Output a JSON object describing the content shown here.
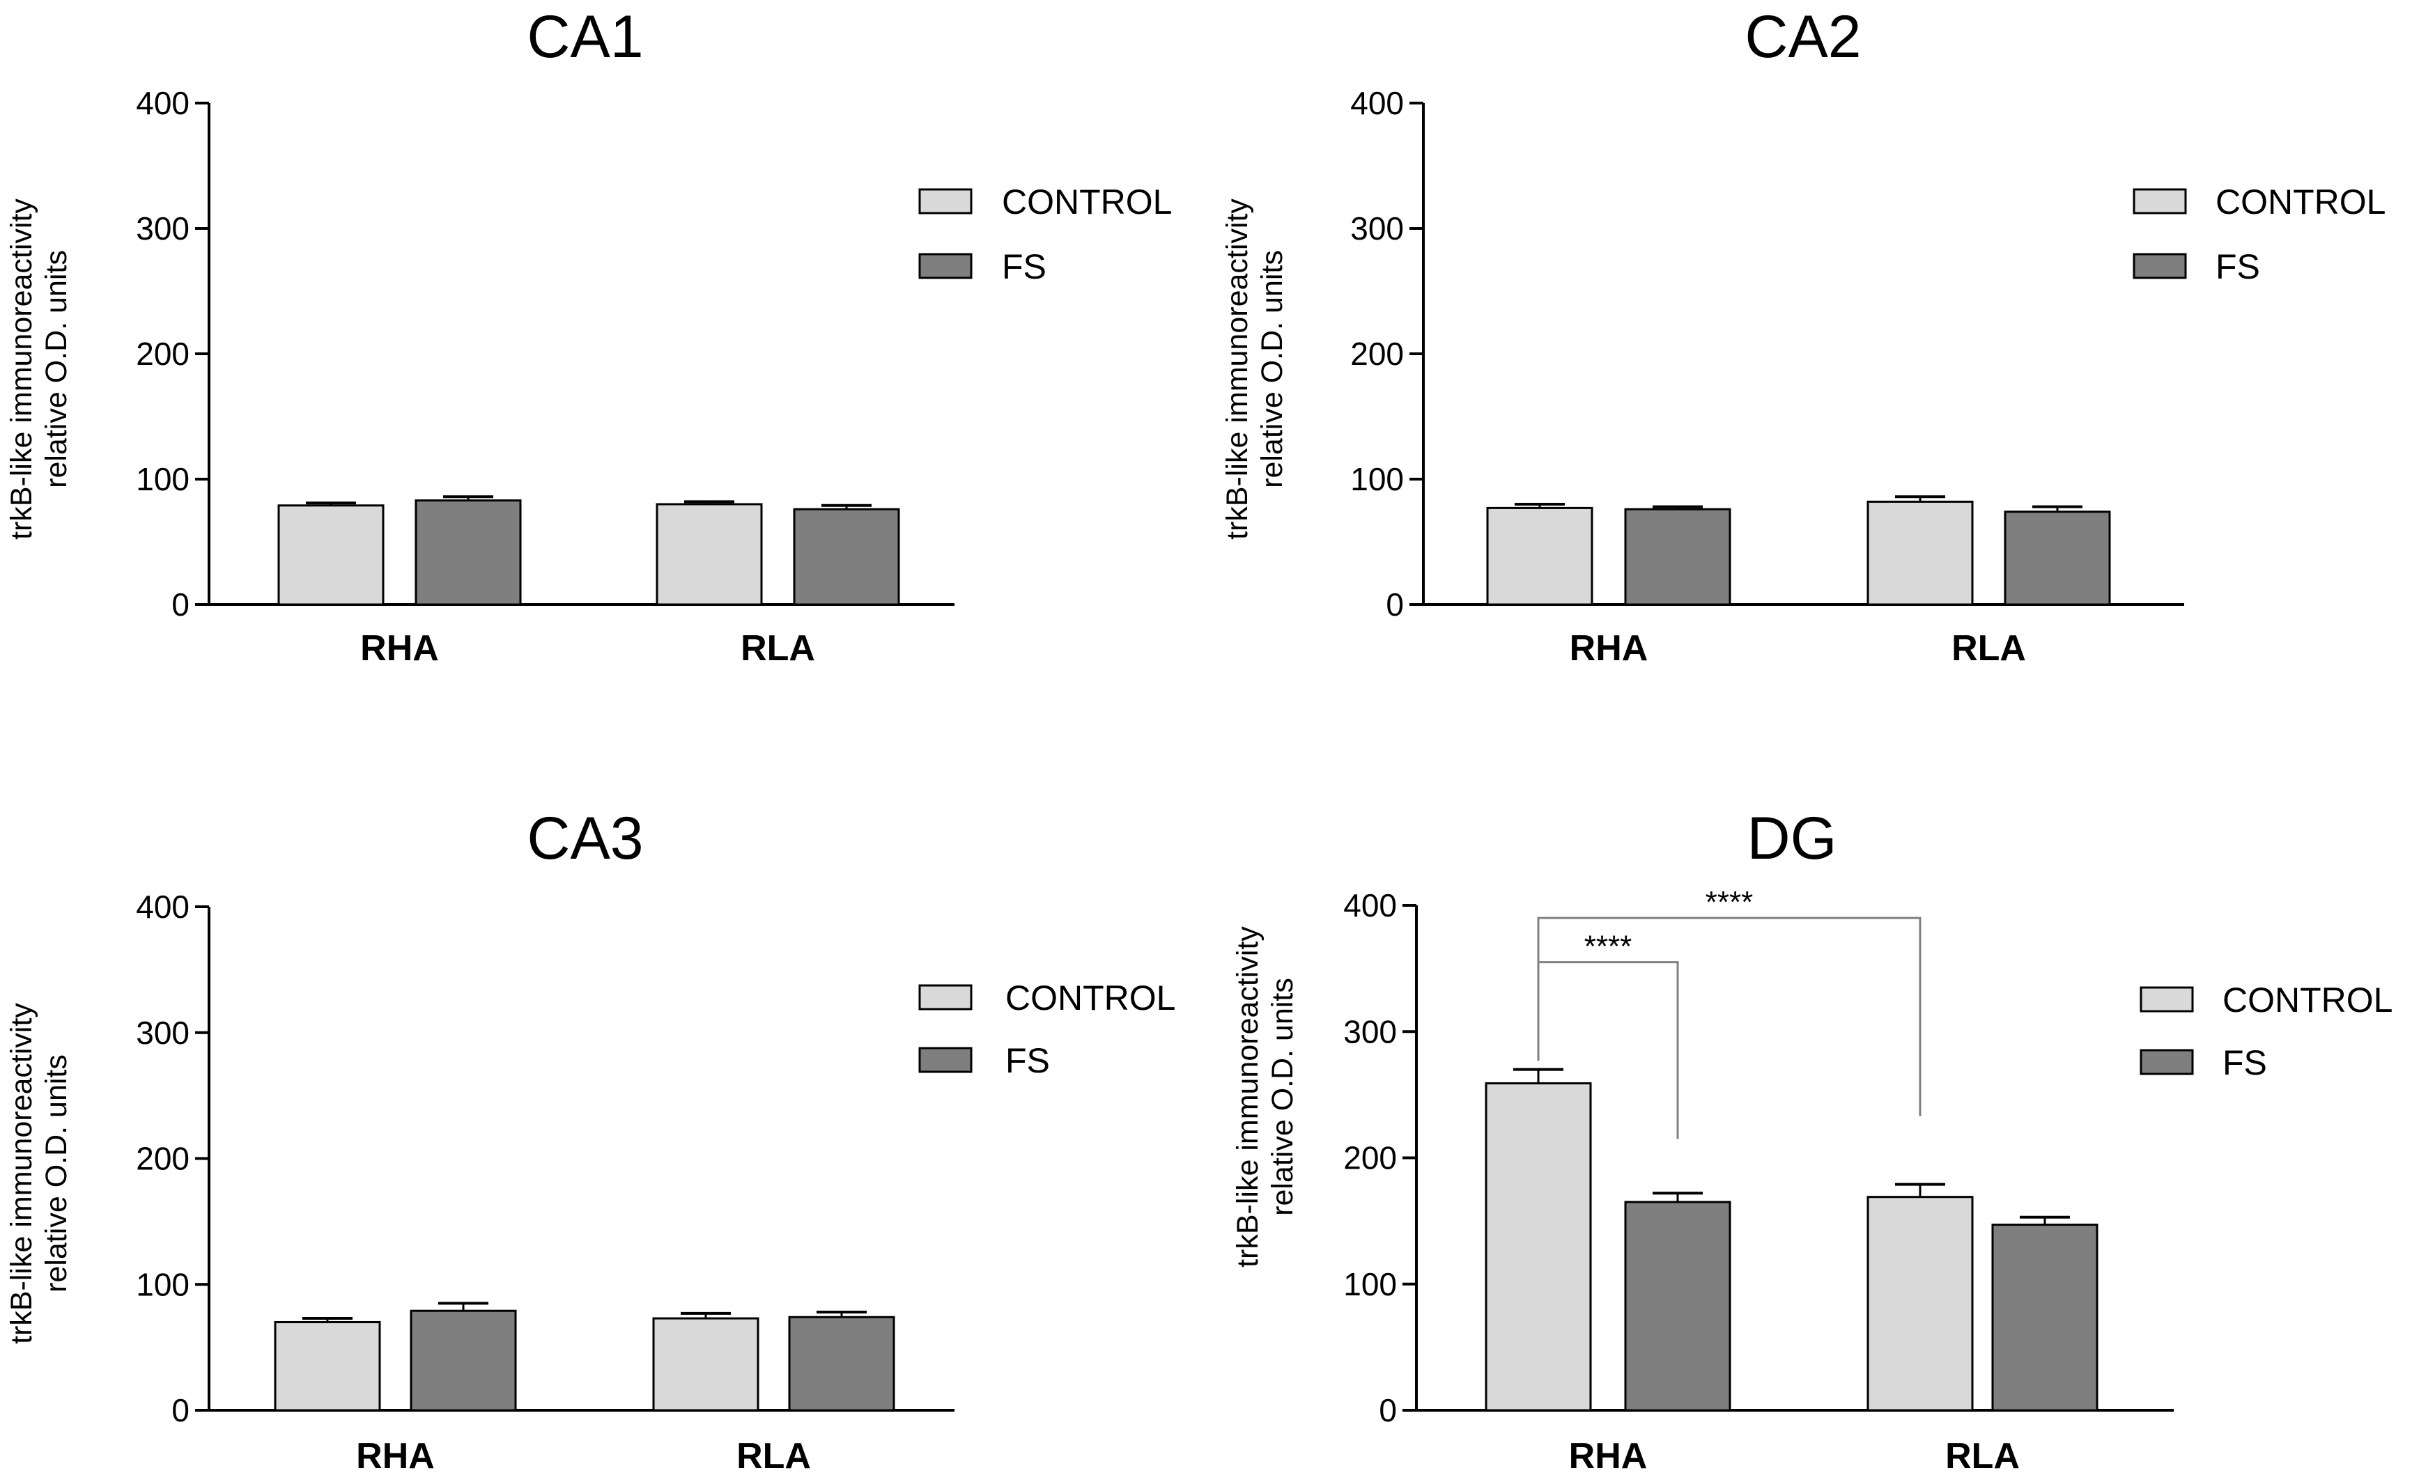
{
  "colors": {
    "control": "#d9d9d9",
    "fs": "#7f7f7f",
    "stroke": "#000000",
    "bracket": "#808080"
  },
  "chart_data": [
    {
      "type": "bar",
      "title": "CA1",
      "ylabel_lines": [
        "trkB-like immunoreactivity",
        "relative O.D. units"
      ],
      "xlabel": "",
      "ylim": [
        0,
        400
      ],
      "yticks": [
        0,
        100,
        200,
        300,
        400
      ],
      "categories": [
        "RHA",
        "RLA"
      ],
      "series": [
        {
          "name": "CONTROL",
          "values": [
            79,
            80
          ],
          "errors": [
            2,
            2
          ]
        },
        {
          "name": "FS",
          "values": [
            83,
            76
          ],
          "errors": [
            3,
            3
          ]
        }
      ],
      "legend": "right",
      "annotations": []
    },
    {
      "type": "bar",
      "title": "CA2",
      "ylabel_lines": [
        "trkB-like immunoreactivity",
        "relative O.D. units"
      ],
      "xlabel": "",
      "ylim": [
        0,
        400
      ],
      "yticks": [
        0,
        100,
        200,
        300,
        400
      ],
      "categories": [
        "RHA",
        "RLA"
      ],
      "series": [
        {
          "name": "CONTROL",
          "values": [
            77,
            82
          ],
          "errors": [
            3,
            4
          ]
        },
        {
          "name": "FS",
          "values": [
            76,
            74
          ],
          "errors": [
            2,
            4
          ]
        }
      ],
      "legend": "right",
      "annotations": []
    },
    {
      "type": "bar",
      "title": "CA3",
      "ylabel_lines": [
        "trkB-like immunoreactivity",
        "relative O.D. units"
      ],
      "xlabel": "",
      "ylim": [
        0,
        400
      ],
      "yticks": [
        0,
        100,
        200,
        300,
        400
      ],
      "categories": [
        "RHA",
        "RLA"
      ],
      "series": [
        {
          "name": "CONTROL",
          "values": [
            70,
            73
          ],
          "errors": [
            3,
            4
          ]
        },
        {
          "name": "FS",
          "values": [
            79,
            74
          ],
          "errors": [
            6,
            4
          ]
        }
      ],
      "legend": "right",
      "annotations": []
    },
    {
      "type": "bar",
      "title": "DG",
      "ylabel_lines": [
        "trkB-like immunoreactivity",
        "relative O.D. units"
      ],
      "xlabel": "",
      "ylim": [
        0,
        400
      ],
      "yticks": [
        0,
        100,
        200,
        300,
        400
      ],
      "categories": [
        "RHA",
        "RLA"
      ],
      "series": [
        {
          "name": "CONTROL",
          "values": [
            259,
            169
          ],
          "errors": [
            11,
            10
          ]
        },
        {
          "name": "FS",
          "values": [
            165,
            147
          ],
          "errors": [
            7,
            6
          ]
        }
      ],
      "legend": "right",
      "annotations": [
        {
          "label": "****",
          "from": "RHA CONTROL",
          "to": "RHA FS",
          "level": 355,
          "end_level": 215
        },
        {
          "label": "****",
          "from": "RHA CONTROL",
          "to": "RLA CONTROL",
          "level": 390,
          "end_level": 233
        }
      ]
    }
  ]
}
